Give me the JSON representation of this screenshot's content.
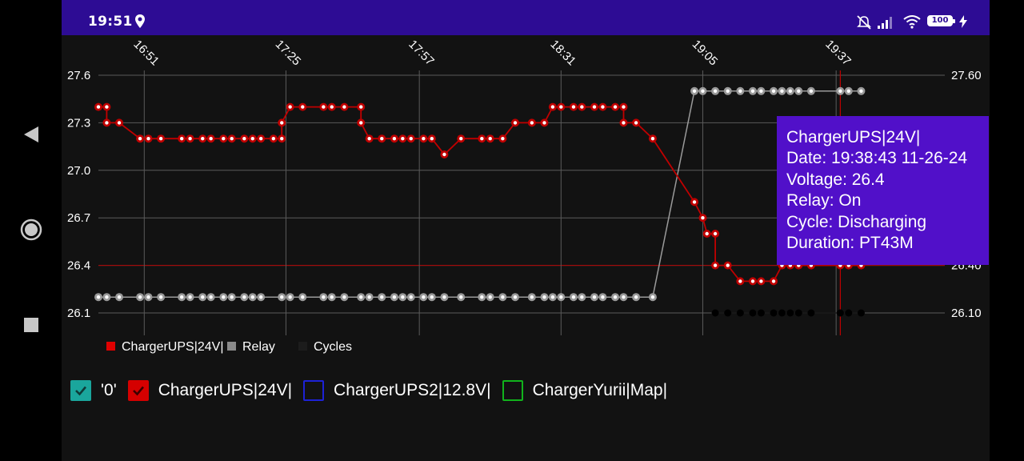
{
  "status_bar": {
    "time": "19:51",
    "battery": "100",
    "icons": [
      "location-icon",
      "mute-icon",
      "signal-icon",
      "wifi-icon",
      "battery-icon",
      "charging-icon"
    ]
  },
  "nav": {
    "buttons": [
      "back-button",
      "home-button",
      "recents-button"
    ]
  },
  "chart_data": {
    "type": "line",
    "x_ticks": [
      "16:51",
      "17:25",
      "17:57",
      "18:31",
      "19:05",
      "19:37"
    ],
    "y_left_ticks": [
      "27.6",
      "27.3",
      "27.0",
      "26.7",
      "26.4",
      "26.1"
    ],
    "y_right_ticks": [
      "27.60",
      "27.30",
      "27.00",
      "26.70",
      "26.40",
      "26.10"
    ],
    "ylim": [
      26.1,
      27.6
    ],
    "legend": [
      {
        "name": "ChargerUPS|24V|",
        "color": "#e00000"
      },
      {
        "name": "Relay",
        "color": "#8a8a8a"
      },
      {
        "name": "Cycles",
        "color": "#1c1c1c"
      }
    ],
    "series": [
      {
        "name": "ChargerUPS|24V|",
        "color": "#c00000",
        "times": [
          "16:40",
          "16:42",
          "16:42",
          "16:45",
          "16:50",
          "16:52",
          "16:55",
          "17:00",
          "17:02",
          "17:05",
          "17:07",
          "17:10",
          "17:12",
          "17:15",
          "17:17",
          "17:19",
          "17:22",
          "17:24",
          "17:24",
          "17:26",
          "17:29",
          "17:34",
          "17:36",
          "17:39",
          "17:43",
          "17:43",
          "17:45",
          "17:48",
          "17:51",
          "17:53",
          "17:55",
          "17:58",
          "18:00",
          "18:03",
          "18:07",
          "18:12",
          "18:14",
          "18:17",
          "18:20",
          "18:24",
          "18:27",
          "18:29",
          "18:31",
          "18:34",
          "18:36",
          "18:39",
          "18:41",
          "18:44",
          "18:46",
          "18:46",
          "18:49",
          "18:53",
          "19:03",
          "19:05",
          "19:06",
          "19:08",
          "19:08",
          "19:11",
          "19:14",
          "19:17",
          "19:19",
          "19:22",
          "19:24",
          "19:26",
          "19:28",
          "19:31",
          "19:38",
          "19:40",
          "19:43"
        ],
        "values": [
          27.4,
          27.4,
          27.3,
          27.3,
          27.2,
          27.2,
          27.2,
          27.2,
          27.2,
          27.2,
          27.2,
          27.2,
          27.2,
          27.2,
          27.2,
          27.2,
          27.2,
          27.2,
          27.3,
          27.4,
          27.4,
          27.4,
          27.4,
          27.4,
          27.4,
          27.3,
          27.2,
          27.2,
          27.2,
          27.2,
          27.2,
          27.2,
          27.2,
          27.1,
          27.2,
          27.2,
          27.2,
          27.2,
          27.3,
          27.3,
          27.3,
          27.4,
          27.4,
          27.4,
          27.4,
          27.4,
          27.4,
          27.4,
          27.4,
          27.3,
          27.3,
          27.2,
          26.8,
          26.7,
          26.6,
          26.6,
          26.4,
          26.4,
          26.3,
          26.3,
          26.3,
          26.3,
          26.4,
          26.4,
          26.4,
          26.4,
          26.4,
          26.4,
          26.4
        ]
      },
      {
        "name": "Relay",
        "color": "#9a9a9a",
        "times": [
          "16:40",
          "16:42",
          "16:45",
          "16:50",
          "16:52",
          "16:55",
          "17:00",
          "17:02",
          "17:05",
          "17:07",
          "17:10",
          "17:12",
          "17:15",
          "17:17",
          "17:19",
          "17:24",
          "17:26",
          "17:29",
          "17:34",
          "17:36",
          "17:39",
          "17:43",
          "17:45",
          "17:48",
          "17:51",
          "17:53",
          "17:55",
          "17:58",
          "18:00",
          "18:03",
          "18:07",
          "18:12",
          "18:14",
          "18:17",
          "18:20",
          "18:24",
          "18:27",
          "18:29",
          "18:31",
          "18:34",
          "18:36",
          "18:39",
          "18:41",
          "18:44",
          "18:46",
          "18:49",
          "18:53",
          "19:03",
          "19:05",
          "19:08",
          "19:11",
          "19:14",
          "19:17",
          "19:19",
          "19:22",
          "19:24",
          "19:26",
          "19:28",
          "19:31",
          "19:38",
          "19:40",
          "19:43"
        ],
        "values": [
          26.2,
          26.2,
          26.2,
          26.2,
          26.2,
          26.2,
          26.2,
          26.2,
          26.2,
          26.2,
          26.2,
          26.2,
          26.2,
          26.2,
          26.2,
          26.2,
          26.2,
          26.2,
          26.2,
          26.2,
          26.2,
          26.2,
          26.2,
          26.2,
          26.2,
          26.2,
          26.2,
          26.2,
          26.2,
          26.2,
          26.2,
          26.2,
          26.2,
          26.2,
          26.2,
          26.2,
          26.2,
          26.2,
          26.2,
          26.2,
          26.2,
          26.2,
          26.2,
          26.2,
          26.2,
          26.2,
          26.2,
          27.5,
          27.5,
          27.5,
          27.5,
          27.5,
          27.5,
          27.5,
          27.5,
          27.5,
          27.5,
          27.5,
          27.5,
          27.5,
          27.5,
          27.5
        ]
      },
      {
        "name": "Cycles",
        "color": "#000000",
        "times": [
          "19:08",
          "19:11",
          "19:14",
          "19:17",
          "19:19",
          "19:22",
          "19:24",
          "19:26",
          "19:28",
          "19:31",
          "19:38",
          "19:40",
          "19:43"
        ],
        "values": [
          26.1,
          26.1,
          26.1,
          26.1,
          26.1,
          26.1,
          26.1,
          26.1,
          26.1,
          26.1,
          26.1,
          26.1,
          26.1
        ]
      }
    ],
    "selected_time": "19:38",
    "tooltip": {
      "series": "ChargerUPS|24V|",
      "date": "Date: 19:38:43 11-26-24",
      "voltage": "Voltage: 26.4",
      "relay": "Relay: On",
      "cycle": "Cycle: Discharging",
      "duration": "Duration: PT43M"
    }
  },
  "series_toggles": [
    {
      "label": "'0'",
      "checked": true,
      "color": "#1aa69c"
    },
    {
      "label": "ChargerUPS|24V|",
      "checked": true,
      "color": "#d50000"
    },
    {
      "label": "ChargerUPS2|12.8V|",
      "checked": false,
      "color": "#1d22d6"
    },
    {
      "label": "ChargerYurii|Map|",
      "checked": false,
      "color": "#11b31c"
    }
  ]
}
